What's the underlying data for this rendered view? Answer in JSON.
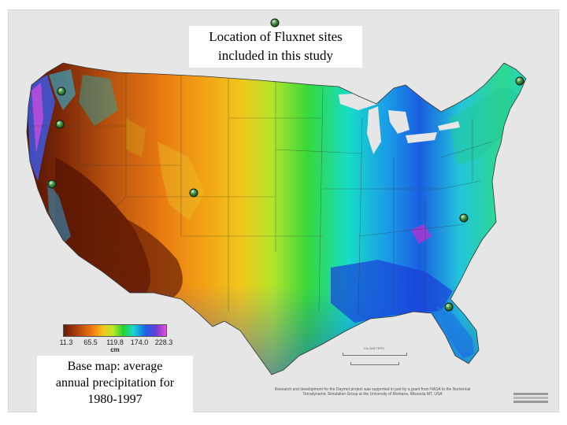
{
  "title": {
    "line1": "Location of Fluxnet sites",
    "line2": "included in this study"
  },
  "base_map_note": {
    "line1": "Base map:  average",
    "line2": "annual precipitation for",
    "line3": "1980-1997"
  },
  "legend": {
    "ticks": [
      "11.3",
      "65.5",
      "119.8",
      "174.0",
      "228.3"
    ],
    "unit": "cm",
    "min": 11.3,
    "max": 228.3
  },
  "colors": {
    "dry": "#6b1a05",
    "semi_arid": "#f07a10",
    "moderate": "#bde72a",
    "humid": "#18d6d0",
    "wet": "#1a63e8",
    "very_wet": "#e34fd8",
    "marker": "#2e6b2e"
  },
  "sites": [
    {
      "name": "site-pacific-nw-north"
    },
    {
      "name": "site-pacific-nw-south"
    },
    {
      "name": "site-california"
    },
    {
      "name": "site-colorado"
    },
    {
      "name": "site-maine"
    },
    {
      "name": "site-north-carolina"
    },
    {
      "name": "site-florida"
    },
    {
      "name": "site-top"
    }
  ],
  "scalebar_label": "KILOMETERS",
  "credit_text": "Research and development for the Daymet project was supported in part by a grant from NASA to the Numerical Terradynamic Simulation Group at the University of Montana, Missoula MT, USA"
}
